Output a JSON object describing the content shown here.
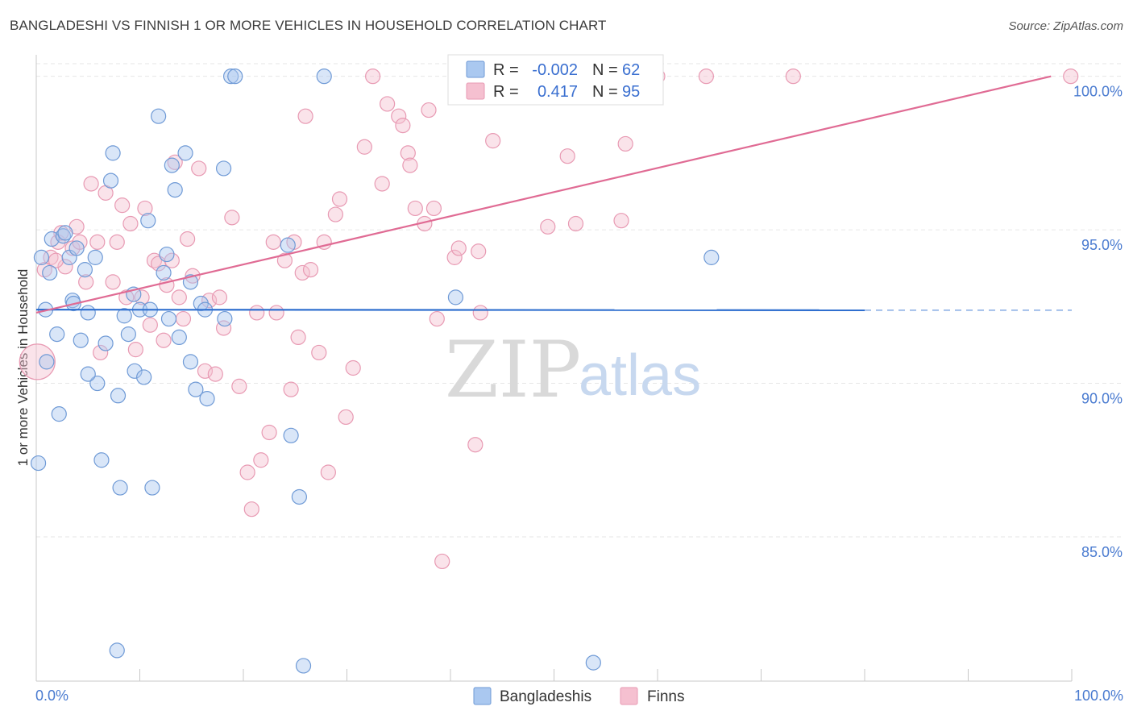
{
  "header": {
    "title": "BANGLADESHI VS FINNISH 1 OR MORE VEHICLES IN HOUSEHOLD CORRELATION CHART",
    "source": "Source: ZipAtlas.com"
  },
  "watermark": {
    "zip": "ZIP",
    "atlas": "atlas"
  },
  "colors": {
    "blue_fill": "#aac8f0",
    "blue_stroke": "#6f9ad6",
    "blue_line": "#2f6fcf",
    "pink_fill": "#f5c0d0",
    "pink_stroke": "#e89ab3",
    "pink_line": "#e06b94",
    "grid": "#e6e6e6",
    "tick_text": "#4a7bd0"
  },
  "legend": {
    "rows": [
      {
        "r_label": "R =",
        "r_value": "-0.002",
        "n_label": "N =",
        "n_value": "62",
        "color": "#aac8f0"
      },
      {
        "r_label": "R =",
        "r_value": "0.417",
        "n_label": "N =",
        "n_value": "95",
        "color": "#f5c0d0"
      }
    ]
  },
  "bottom_legend": [
    "Bangladeshis",
    "Finns"
  ],
  "chart_data": {
    "type": "scatter",
    "title": "BANGLADESHI VS FINNISH 1 OR MORE VEHICLES IN HOUSEHOLD CORRELATION CHART",
    "xlabel": "",
    "ylabel": "1 or more Vehicles in Household",
    "xlim": [
      0,
      100
    ],
    "ylim": [
      80.3,
      100.7
    ],
    "x_tick_labels": [
      "0.0%",
      "100.0%"
    ],
    "y_ticks": [
      85,
      90,
      95,
      100
    ],
    "y_tick_labels": [
      "85.0%",
      "90.0%",
      "95.0%",
      "100.0%"
    ],
    "series": [
      {
        "name": "Bangladeshis",
        "r": -0.002,
        "n": 62,
        "trend": {
          "x0": 0,
          "y0": 92.4,
          "x1": 80,
          "y1": 92.38,
          "dashed_to": 100
        },
        "points": [
          [
            0.2,
            87.4
          ],
          [
            0.5,
            94.1
          ],
          [
            0.9,
            92.4
          ],
          [
            1.3,
            93.6
          ],
          [
            1.5,
            94.7
          ],
          [
            2.0,
            91.6
          ],
          [
            2.2,
            89.0
          ],
          [
            2.6,
            94.8
          ],
          [
            2.8,
            94.9
          ],
          [
            3.2,
            94.1
          ],
          [
            3.5,
            92.7
          ],
          [
            3.6,
            92.6
          ],
          [
            3.9,
            94.4
          ],
          [
            4.3,
            91.4
          ],
          [
            4.7,
            93.7
          ],
          [
            5.0,
            92.3
          ],
          [
            5.7,
            94.1
          ],
          [
            5.9,
            90.0
          ],
          [
            6.3,
            87.5
          ],
          [
            6.7,
            91.3
          ],
          [
            7.2,
            96.6
          ],
          [
            7.4,
            97.5
          ],
          [
            7.9,
            89.6
          ],
          [
            8.1,
            86.6
          ],
          [
            8.5,
            92.2
          ],
          [
            8.9,
            91.6
          ],
          [
            9.4,
            92.9
          ],
          [
            9.5,
            90.4
          ],
          [
            10.0,
            92.4
          ],
          [
            10.4,
            90.2
          ],
          [
            10.8,
            95.3
          ],
          [
            11.2,
            86.6
          ],
          [
            11.8,
            98.7
          ],
          [
            12.3,
            93.6
          ],
          [
            12.6,
            94.2
          ],
          [
            12.8,
            92.1
          ],
          [
            13.1,
            97.1
          ],
          [
            13.4,
            96.3
          ],
          [
            13.8,
            91.5
          ],
          [
            14.4,
            97.5
          ],
          [
            14.9,
            93.3
          ],
          [
            14.9,
            90.7
          ],
          [
            15.4,
            89.8
          ],
          [
            15.9,
            92.6
          ],
          [
            16.3,
            92.4
          ],
          [
            16.5,
            89.5
          ],
          [
            18.1,
            97.0
          ],
          [
            18.2,
            92.1
          ],
          [
            18.8,
            100.0
          ],
          [
            19.2,
            100.0
          ],
          [
            24.3,
            94.5
          ],
          [
            24.6,
            88.3
          ],
          [
            25.4,
            86.3
          ],
          [
            25.8,
            80.8
          ],
          [
            27.8,
            100.0
          ],
          [
            40.5,
            92.8
          ],
          [
            53.8,
            80.9
          ],
          [
            65.2,
            94.1
          ],
          [
            7.8,
            81.3
          ],
          [
            1.0,
            90.7
          ],
          [
            5.0,
            90.3
          ],
          [
            11.0,
            92.4
          ]
        ]
      },
      {
        "name": "Finns",
        "r": 0.417,
        "n": 95,
        "trend": {
          "x0": 0,
          "y0": 92.3,
          "x1": 98,
          "y1": 100.0
        },
        "points": [
          [
            0.1,
            90.7
          ],
          [
            0.8,
            93.7
          ],
          [
            1.4,
            94.1
          ],
          [
            2.1,
            94.6
          ],
          [
            2.4,
            94.9
          ],
          [
            2.8,
            93.8
          ],
          [
            3.5,
            94.4
          ],
          [
            3.9,
            95.1
          ],
          [
            4.2,
            94.6
          ],
          [
            4.8,
            93.3
          ],
          [
            5.3,
            96.5
          ],
          [
            5.9,
            94.6
          ],
          [
            6.2,
            91.0
          ],
          [
            6.7,
            96.2
          ],
          [
            7.4,
            93.3
          ],
          [
            7.8,
            94.6
          ],
          [
            8.3,
            95.8
          ],
          [
            8.7,
            92.8
          ],
          [
            9.1,
            95.2
          ],
          [
            9.6,
            91.1
          ],
          [
            10.2,
            92.8
          ],
          [
            10.5,
            95.7
          ],
          [
            11.0,
            91.9
          ],
          [
            11.4,
            94.0
          ],
          [
            11.8,
            93.9
          ],
          [
            12.3,
            91.4
          ],
          [
            12.6,
            93.2
          ],
          [
            13.1,
            94.0
          ],
          [
            13.4,
            97.2
          ],
          [
            13.8,
            92.8
          ],
          [
            14.2,
            92.1
          ],
          [
            14.6,
            94.7
          ],
          [
            15.1,
            93.5
          ],
          [
            15.7,
            97.0
          ],
          [
            16.3,
            90.4
          ],
          [
            16.7,
            92.7
          ],
          [
            17.3,
            90.3
          ],
          [
            17.7,
            92.8
          ],
          [
            18.1,
            91.8
          ],
          [
            18.9,
            95.4
          ],
          [
            19.6,
            89.9
          ],
          [
            20.4,
            87.1
          ],
          [
            20.8,
            85.9
          ],
          [
            21.3,
            92.3
          ],
          [
            21.7,
            87.5
          ],
          [
            22.5,
            88.4
          ],
          [
            22.9,
            94.6
          ],
          [
            23.2,
            92.3
          ],
          [
            24.0,
            94.0
          ],
          [
            24.6,
            89.8
          ],
          [
            24.9,
            94.6
          ],
          [
            25.3,
            91.5
          ],
          [
            25.7,
            93.6
          ],
          [
            26.0,
            98.7
          ],
          [
            26.5,
            93.7
          ],
          [
            27.3,
            91.0
          ],
          [
            27.8,
            94.6
          ],
          [
            28.2,
            87.1
          ],
          [
            28.9,
            95.5
          ],
          [
            29.3,
            96.0
          ],
          [
            29.9,
            88.9
          ],
          [
            30.6,
            90.5
          ],
          [
            31.7,
            97.7
          ],
          [
            32.5,
            100.0
          ],
          [
            33.4,
            96.5
          ],
          [
            33.9,
            99.1
          ],
          [
            35.0,
            98.7
          ],
          [
            35.4,
            98.4
          ],
          [
            35.9,
            97.5
          ],
          [
            36.1,
            97.1
          ],
          [
            36.6,
            95.7
          ],
          [
            37.5,
            95.2
          ],
          [
            37.9,
            98.9
          ],
          [
            38.4,
            95.7
          ],
          [
            38.7,
            92.1
          ],
          [
            39.2,
            84.2
          ],
          [
            40.4,
            94.1
          ],
          [
            40.8,
            94.4
          ],
          [
            42.4,
            88.0
          ],
          [
            42.7,
            94.3
          ],
          [
            42.9,
            92.3
          ],
          [
            44.1,
            97.9
          ],
          [
            46.3,
            100.0
          ],
          [
            49.4,
            95.1
          ],
          [
            51.3,
            97.4
          ],
          [
            52.1,
            95.2
          ],
          [
            55.4,
            100.0
          ],
          [
            56.5,
            95.3
          ],
          [
            56.9,
            97.8
          ],
          [
            58.6,
            100.0
          ],
          [
            60.0,
            100.0
          ],
          [
            64.7,
            100.0
          ],
          [
            73.1,
            100.0
          ],
          [
            99.9,
            100.0
          ],
          [
            1.9,
            94.0
          ]
        ]
      }
    ]
  }
}
